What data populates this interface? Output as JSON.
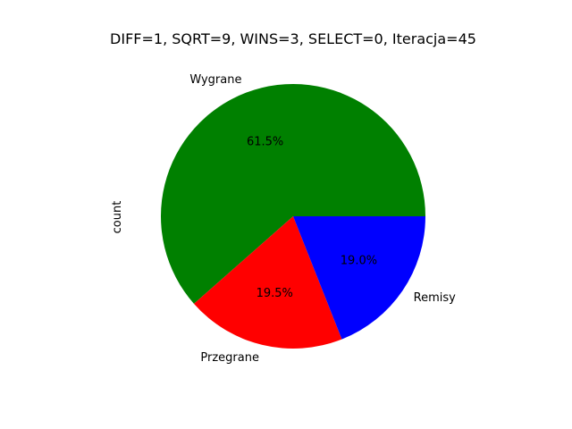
{
  "chart_data": {
    "type": "pie",
    "title": "DIFF=1, SQRT=9, WINS=3, SELECT=0, Iteracja=45",
    "ylabel": "count",
    "slices": [
      {
        "label": "Wygrane",
        "percent": 61.5,
        "pct_label": "61.5%",
        "color": "#008000"
      },
      {
        "label": "Przegrane",
        "percent": 19.5,
        "pct_label": "19.5%",
        "color": "#ff0000"
      },
      {
        "label": "Remisy",
        "percent": 19.0,
        "pct_label": "19.0%",
        "color": "#0000ff"
      }
    ]
  }
}
